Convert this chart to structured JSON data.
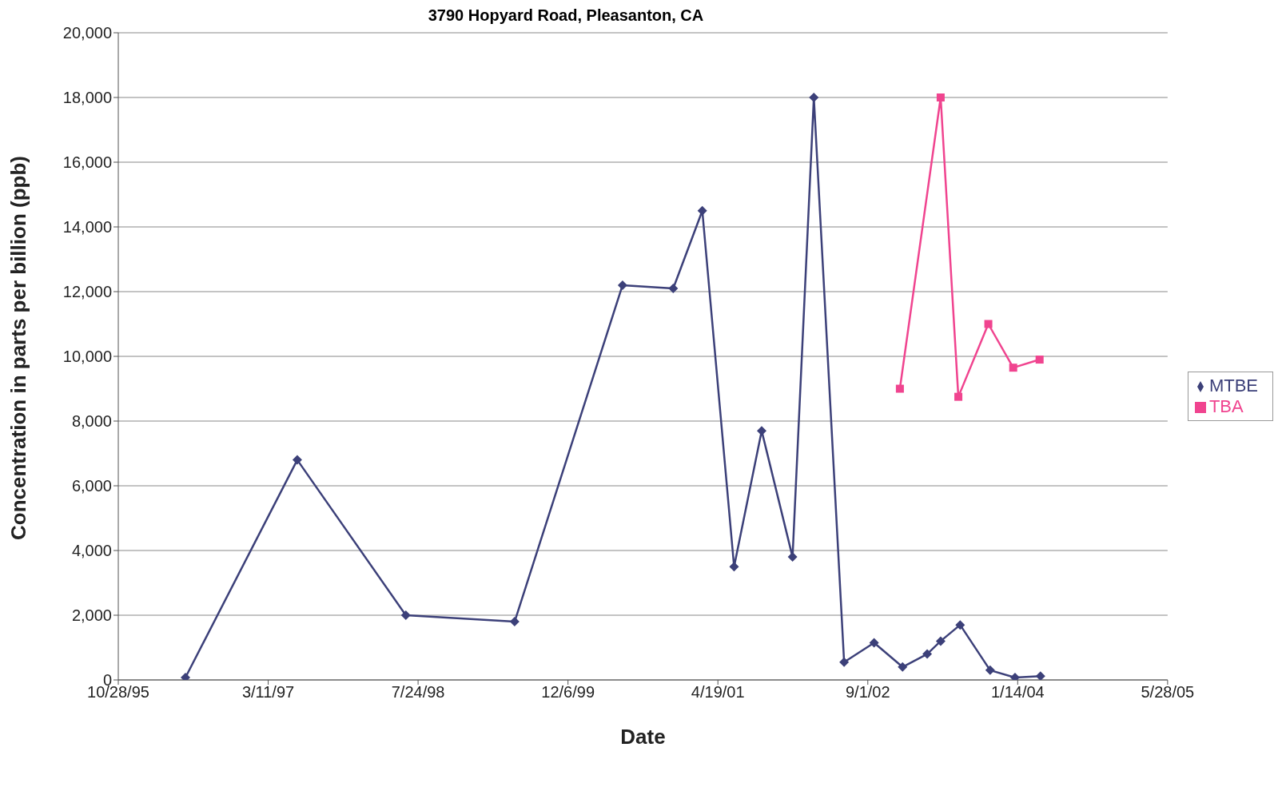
{
  "chart_data": {
    "type": "line",
    "title": "3790 Hopyard Road, Pleasanton, CA",
    "xlabel": "Date",
    "ylabel": "Concentration in parts per billion (ppb)",
    "xlim": [
      "1995-10-28",
      "2005-05-28"
    ],
    "xticks": [
      {
        "value": "1995-10-28",
        "label": "10/28/95"
      },
      {
        "value": "1997-03-11",
        "label": "3/11/97"
      },
      {
        "value": "1998-07-24",
        "label": "7/24/98"
      },
      {
        "value": "1999-12-06",
        "label": "12/6/99"
      },
      {
        "value": "2001-04-19",
        "label": "4/19/01"
      },
      {
        "value": "2002-09-01",
        "label": "9/1/02"
      },
      {
        "value": "2004-01-14",
        "label": "1/14/04"
      },
      {
        "value": "2005-05-28",
        "label": "5/28/05"
      }
    ],
    "ylim": [
      0,
      20000
    ],
    "yticks": [
      {
        "value": 0,
        "label": "0"
      },
      {
        "value": 2000,
        "label": "2,000"
      },
      {
        "value": 4000,
        "label": "4,000"
      },
      {
        "value": 6000,
        "label": "6,000"
      },
      {
        "value": 8000,
        "label": "8,000"
      },
      {
        "value": 10000,
        "label": "10,000"
      },
      {
        "value": 12000,
        "label": "12,000"
      },
      {
        "value": 14000,
        "label": "14,000"
      },
      {
        "value": 16000,
        "label": "16,000"
      },
      {
        "value": 18000,
        "label": "18,000"
      },
      {
        "value": 20000,
        "label": "20,000"
      }
    ],
    "grid": "y",
    "legend": "right",
    "series": [
      {
        "name": "MTBE",
        "color": "#3c4079",
        "marker": "diamond",
        "x": [
          "1996-06-08",
          "1997-06-16",
          "1998-06-13",
          "1999-06-11",
          "2000-06-05",
          "2000-11-21",
          "2001-02-26",
          "2001-06-12",
          "2001-09-12",
          "2001-12-24",
          "2002-03-05",
          "2002-06-14",
          "2002-09-22",
          "2002-12-26",
          "2003-03-18",
          "2003-05-02",
          "2003-07-06",
          "2003-10-14",
          "2004-01-05",
          "2004-03-30"
        ],
        "values": [
          75,
          6800,
          2000,
          1800,
          12200,
          12100,
          14500,
          3500,
          7700,
          3800,
          18000,
          550,
          1150,
          400,
          800,
          1200,
          1700,
          300,
          75,
          120
        ]
      },
      {
        "name": "TBA",
        "color": "#f0448f",
        "marker": "square",
        "x": [
          "2002-12-17",
          "2003-05-02",
          "2003-06-30",
          "2003-10-08",
          "2003-12-30",
          "2004-03-27"
        ],
        "values": [
          9000,
          18000,
          8750,
          11000,
          9650,
          9900
        ]
      }
    ]
  }
}
